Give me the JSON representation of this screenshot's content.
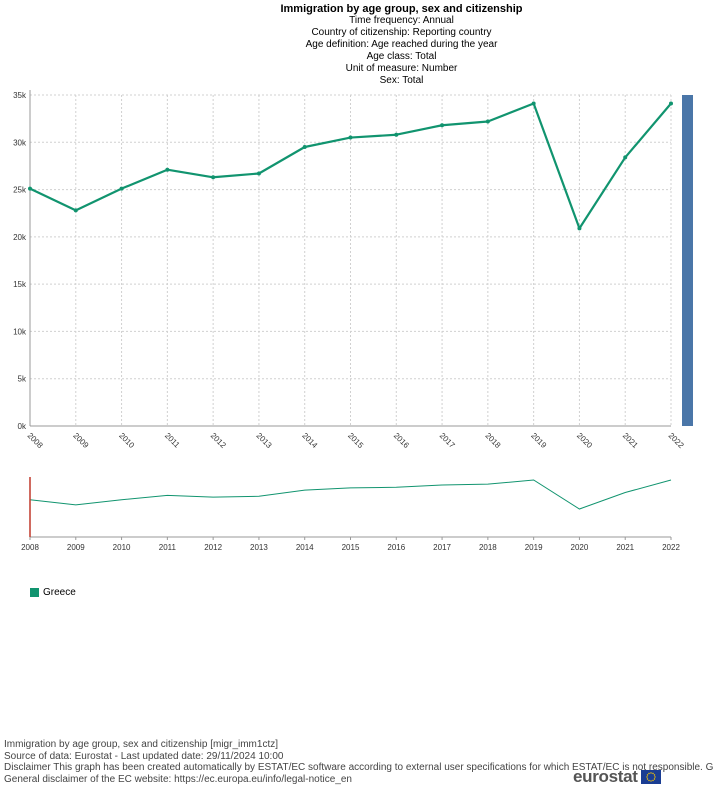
{
  "header": {
    "title": "Immigration by age group, sex and citizenship",
    "lines": [
      "Time frequency:  Annual",
      "Country of citizenship:  Reporting country",
      "Age definition:  Age reached during the year",
      "Age class:  Total",
      "Unit of measure:  Number",
      "Sex:  Total"
    ]
  },
  "chart_data": {
    "type": "line",
    "x": [
      "2008",
      "2009",
      "2010",
      "2011",
      "2012",
      "2013",
      "2014",
      "2015",
      "2016",
      "2017",
      "2018",
      "2019",
      "2020",
      "2021",
      "2022"
    ],
    "series": [
      {
        "name": "Greece",
        "values": [
          25100,
          22800,
          25100,
          27100,
          26300,
          26700,
          29500,
          30500,
          30800,
          31800,
          32200,
          34100,
          20900,
          28400,
          34100
        ]
      }
    ],
    "y_ticks": [
      "0k",
      "5k",
      "10k",
      "15k",
      "20k",
      "25k",
      "30k",
      "35k"
    ],
    "ylim": [
      0,
      35000
    ],
    "grid": true,
    "legend_position": "bottom-left",
    "colors": {
      "series": "#11946f",
      "scrollbar": "#4a76a8",
      "navigator_handle": "#c0392b",
      "grid": "#d0d0d0"
    }
  },
  "legend": {
    "label": "Greece",
    "color": "#11946f"
  },
  "footer": {
    "lines": [
      "Immigration by age group, sex and citizenship [migr_imm1ctz]",
      "Source of data: Eurostat - Last updated date: 29/11/2024 10:00",
      "Disclaimer This graph has been created automatically by ESTAT/EC software according to external user specifications for which ESTAT/EC is not responsible. G",
      "General disclaimer of the EC website: https://ec.europa.eu/info/legal-notice_en"
    ],
    "logo_text": "eurostat"
  }
}
